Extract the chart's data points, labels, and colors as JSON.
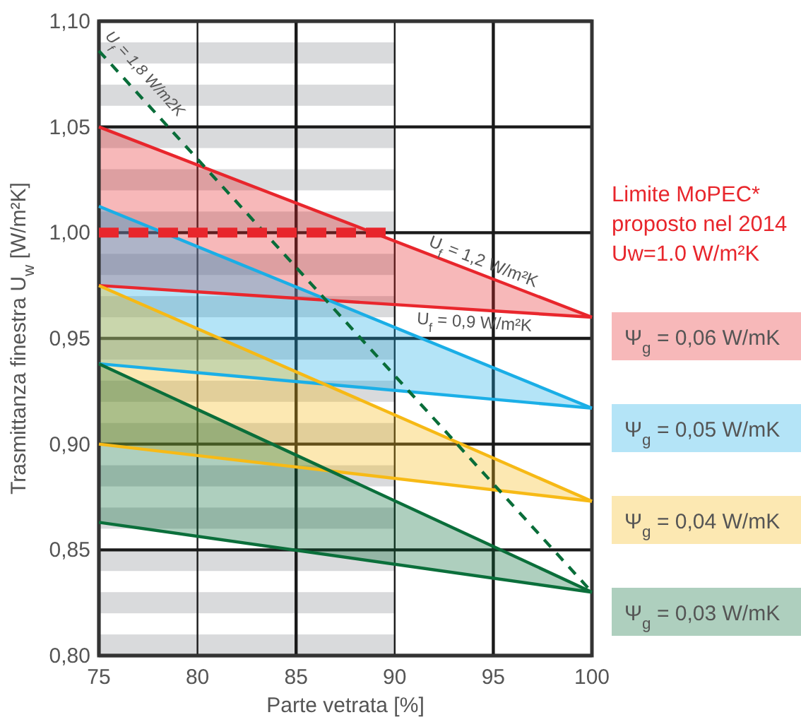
{
  "chart_data": {
    "type": "line",
    "xlabel": "Parte vetrata [%]",
    "ylabel": "Trasmittanza finestra U$_{w}$ [W/m²K]",
    "xlim": [
      75,
      100
    ],
    "ylim": [
      0.8,
      1.1
    ],
    "xticks": [
      75,
      80,
      85,
      90,
      95,
      100
    ],
    "yticks": [
      {
        "value": 0.8,
        "label": "0,80"
      },
      {
        "value": 0.85,
        "label": "0,85"
      },
      {
        "value": 0.9,
        "label": "0,90"
      },
      {
        "value": 0.95,
        "label": "0,95"
      },
      {
        "value": 1.0,
        "label": "1,00"
      },
      {
        "value": 1.05,
        "label": "1,05"
      },
      {
        "value": 1.1,
        "label": "1,10"
      }
    ],
    "grid": true,
    "legend": "right",
    "bands": [
      {
        "axis": "x",
        "from": 75,
        "to": 90,
        "color": "#d9dadc"
      }
    ],
    "annotations": [
      "Limite MoPEC*\nproposto nel 2014\nUw=1.0 W/m²K",
      {
        "text": "U$_{f}$ = 1,2 W/m²K",
        "x": 97,
        "y": 0.971
      },
      {
        "text": "U$_{f}$ = 0,9 W/m²K",
        "x": 97,
        "y": 0.962
      }
    ],
    "series": [
      {
        "name": "Ψ$_{g}$ = 0,06 W/mK",
        "color": "#e8262c",
        "x": [
          75,
          100
        ],
        "values": [
          1.05,
          0.96
        ],
        "lower": [
          0.975,
          0.96
        ],
        "upper": [
          1.05,
          0.96
        ]
      },
      {
        "color": "#e9272d",
        "x": [
          75,
          100
        ],
        "values": [
          0.975,
          0.96
        ]
      },
      {
        "name": "Ψ$_{g}$ = 0,05 W/mK",
        "color": "#1aaee6",
        "x": [
          75,
          100
        ],
        "values": [
          1.0125,
          0.917
        ],
        "lower": [
          0.938,
          0.917
        ],
        "upper": [
          1.0125,
          0.917
        ]
      },
      {
        "color": "#1bafe7",
        "x": [
          75,
          100
        ],
        "values": [
          0.938,
          0.917
        ]
      },
      {
        "name": "Ψ$_{g}$ = 0,04 W/mK",
        "color": "#f6b915",
        "x": [
          75,
          100
        ],
        "values": [
          0.975,
          0.873
        ],
        "lower": [
          0.9,
          0.873
        ],
        "upper": [
          0.975,
          0.873
        ]
      },
      {
        "color": "#f7ba16",
        "x": [
          75,
          100
        ],
        "values": [
          0.9,
          0.873
        ]
      },
      {
        "name": "Ψ$_{g}$ = 0,03 W/mK",
        "color": "#0a6e3a",
        "x": [
          75,
          100
        ],
        "values": [
          0.938,
          0.83
        ],
        "lower": [
          0.863,
          0.83
        ],
        "upper": [
          0.938,
          0.83
        ]
      },
      {
        "color": "#0b6f3b",
        "x": [
          75,
          100
        ],
        "values": [
          0.863,
          0.83
        ]
      },
      {
        "name": "U$_{f}$ = 1,8 W/m2K",
        "color": "#096d39",
        "line_style": "dashed",
        "x": [
          75,
          100
        ],
        "values": [
          1.086,
          0.83
        ]
      },
      {
        "color": "#e8262c",
        "line_style": "dashed",
        "x": [
          75,
          90
        ],
        "values": [
          1.0,
          1.0
        ]
      }
    ]
  }
}
